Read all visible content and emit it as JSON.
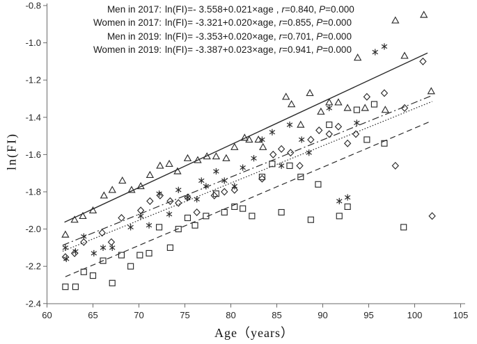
{
  "figure": {
    "background": "#ffffff",
    "ink": "#2a2a2a",
    "text_color": "#1a1a1a"
  },
  "axes": {
    "x_label": "Age（years）",
    "y_label": "ln(FI)",
    "x_ticks": [
      60,
      65,
      70,
      75,
      80,
      85,
      90,
      95,
      100,
      105
    ],
    "y_ticks": [
      -0.8,
      -1.0,
      -1.2,
      -1.4,
      -1.6,
      -1.8,
      -2.0,
      -2.2,
      -2.4
    ]
  },
  "annotations": [
    {
      "label": "Men in 2017:",
      "eq": "ln(FI)=- 3.558+0.021×age ,",
      "r_name": "r",
      "r_rest": "=0.840, ",
      "p_name": "P",
      "p_rest": "=0.000"
    },
    {
      "label": "Women in 2017:",
      "eq": "ln(FI)= -3.321+0.020×age,",
      "r_name": "r",
      "r_rest": "=0.855, ",
      "p_name": "P",
      "p_rest": "=0.000"
    },
    {
      "label": "Men in 2019:",
      "eq": "ln(FI)= -3.353+0.020×age,",
      "r_name": "r",
      "r_rest": "=0.701, ",
      "p_name": "P",
      "p_rest": "=0.000"
    },
    {
      "label": "Women in 2019:",
      "eq": "ln(FI)= -3.387+0.023×age,",
      "r_name": "r",
      "r_rest": "=0.941, ",
      "p_name": "P",
      "p_rest": "=0.000"
    }
  ],
  "chart_data": {
    "type": "scatter",
    "title": "",
    "xlabel": "Age（years）",
    "ylabel": "ln(FI)",
    "xlim": [
      60,
      105
    ],
    "ylim": [
      -2.4,
      -0.8
    ],
    "x_tick_step": 5,
    "y_tick_step": 0.2,
    "grid": false,
    "legend": "none (equations annotated at top)",
    "series": [
      {
        "name": "Men in 2017",
        "marker": "square",
        "line_style": "dashed",
        "regression": {
          "intercept": -3.558,
          "slope": 0.021,
          "r": 0.84,
          "p": 0.0
        },
        "line_x_range": [
          62.0,
          101.8
        ],
        "points": [
          [
            62.0,
            -2.31
          ],
          [
            63.1,
            -2.31
          ],
          [
            64.0,
            -2.23
          ],
          [
            65.0,
            -2.25
          ],
          [
            66.1,
            -2.17
          ],
          [
            67.1,
            -2.29
          ],
          [
            68.1,
            -2.14
          ],
          [
            69.1,
            -2.2
          ],
          [
            70.1,
            -2.14
          ],
          [
            71.1,
            -2.13
          ],
          [
            72.2,
            -1.99
          ],
          [
            73.4,
            -2.1
          ],
          [
            74.3,
            -2.0
          ],
          [
            75.3,
            -1.94
          ],
          [
            76.1,
            -1.98
          ],
          [
            77.3,
            -1.93
          ],
          [
            78.4,
            -1.81
          ],
          [
            79.3,
            -1.91
          ],
          [
            80.4,
            -1.88
          ],
          [
            81.3,
            -1.89
          ],
          [
            82.3,
            -1.93
          ],
          [
            83.4,
            -1.72
          ],
          [
            84.5,
            -1.65
          ],
          [
            85.5,
            -1.91
          ],
          [
            86.4,
            -1.66
          ],
          [
            87.6,
            -1.72
          ],
          [
            88.7,
            -1.95
          ],
          [
            89.5,
            -1.76
          ],
          [
            90.7,
            -1.44
          ],
          [
            91.8,
            -1.93
          ],
          [
            92.7,
            -1.88
          ],
          [
            93.7,
            -1.36
          ],
          [
            94.8,
            -1.52
          ],
          [
            95.6,
            -1.33
          ],
          [
            96.7,
            -1.54
          ],
          [
            98.8,
            -1.99
          ]
        ]
      },
      {
        "name": "Women in 2017",
        "marker": "asterisk",
        "line_style": "dashdot",
        "regression": {
          "intercept": -3.321,
          "slope": 0.02,
          "r": 0.855,
          "p": 0.0
        },
        "line_x_range": [
          61.7,
          102.0
        ],
        "points": [
          [
            62.0,
            -2.1
          ],
          [
            62.1,
            -2.16
          ],
          [
            63.1,
            -2.12
          ],
          [
            64.0,
            -2.04
          ],
          [
            65.1,
            -2.13
          ],
          [
            66.1,
            -2.1
          ],
          [
            67.1,
            -2.1
          ],
          [
            69.1,
            -1.99
          ],
          [
            70.2,
            -1.93
          ],
          [
            71.1,
            -1.98
          ],
          [
            72.2,
            -1.81
          ],
          [
            73.3,
            -1.92
          ],
          [
            74.3,
            -1.79
          ],
          [
            75.3,
            -1.83
          ],
          [
            76.3,
            -1.84
          ],
          [
            76.8,
            -1.74
          ],
          [
            77.3,
            -1.77
          ],
          [
            78.4,
            -1.69
          ],
          [
            79.3,
            -1.74
          ],
          [
            80.4,
            -1.77
          ],
          [
            81.3,
            -1.67
          ],
          [
            82.5,
            -1.62
          ],
          [
            83.4,
            -1.52
          ],
          [
            84.5,
            -1.48
          ],
          [
            85.5,
            -1.66
          ],
          [
            86.4,
            -1.44
          ],
          [
            87.7,
            -1.52
          ],
          [
            88.5,
            -1.59
          ],
          [
            90.7,
            -1.35
          ],
          [
            91.8,
            -1.85
          ],
          [
            92.7,
            -1.83
          ],
          [
            93.7,
            -1.43
          ],
          [
            95.7,
            -1.05
          ],
          [
            96.7,
            -1.02
          ]
        ]
      },
      {
        "name": "Men in 2019",
        "marker": "diamond",
        "line_style": "dotted",
        "regression": {
          "intercept": -3.353,
          "slope": 0.02,
          "r": 0.701,
          "p": 0.0
        },
        "line_x_range": [
          61.7,
          101.9
        ],
        "points": [
          [
            62.0,
            -2.15
          ],
          [
            63.0,
            -2.13
          ],
          [
            64.0,
            -2.07
          ],
          [
            66.0,
            -2.02
          ],
          [
            67.0,
            -2.07
          ],
          [
            68.1,
            -1.94
          ],
          [
            70.2,
            -1.9
          ],
          [
            71.2,
            -1.85
          ],
          [
            72.3,
            -1.82
          ],
          [
            73.4,
            -1.85
          ],
          [
            74.3,
            -1.86
          ],
          [
            75.3,
            -1.83
          ],
          [
            76.3,
            -1.91
          ],
          [
            78.2,
            -1.82
          ],
          [
            79.3,
            -1.8
          ],
          [
            80.4,
            -1.79
          ],
          [
            83.4,
            -1.73
          ],
          [
            84.6,
            -1.6
          ],
          [
            85.5,
            -1.57
          ],
          [
            86.5,
            -1.59
          ],
          [
            87.5,
            -1.66
          ],
          [
            88.7,
            -1.52
          ],
          [
            89.6,
            -1.47
          ],
          [
            90.7,
            -1.49
          ],
          [
            91.7,
            -1.45
          ],
          [
            92.7,
            -1.54
          ],
          [
            93.6,
            -1.49
          ],
          [
            94.8,
            -1.29
          ],
          [
            96.7,
            -1.27
          ],
          [
            97.9,
            -1.66
          ],
          [
            98.9,
            -1.35
          ],
          [
            100.9,
            -1.1
          ],
          [
            101.9,
            -1.93
          ]
        ]
      },
      {
        "name": "Women in 2019",
        "marker": "triangle",
        "line_style": "solid",
        "regression": {
          "intercept": -3.387,
          "slope": 0.023,
          "r": 0.941,
          "p": 0.0
        },
        "line_x_range": [
          61.9,
          101.4
        ],
        "points": [
          [
            62.0,
            -2.03
          ],
          [
            63.0,
            -1.95
          ],
          [
            63.9,
            -1.93
          ],
          [
            65.0,
            -1.9
          ],
          [
            66.2,
            -1.82
          ],
          [
            67.1,
            -1.79
          ],
          [
            68.2,
            -1.74
          ],
          [
            69.2,
            -1.79
          ],
          [
            70.2,
            -1.77
          ],
          [
            71.2,
            -1.71
          ],
          [
            72.3,
            -1.66
          ],
          [
            73.3,
            -1.65
          ],
          [
            74.2,
            -1.69
          ],
          [
            75.3,
            -1.62
          ],
          [
            76.4,
            -1.63
          ],
          [
            77.4,
            -1.61
          ],
          [
            78.4,
            -1.61
          ],
          [
            79.5,
            -1.62
          ],
          [
            80.4,
            -1.56
          ],
          [
            81.5,
            -1.51
          ],
          [
            82.0,
            -1.52
          ],
          [
            83.0,
            -1.52
          ],
          [
            83.5,
            -1.56
          ],
          [
            86.0,
            -1.29
          ],
          [
            86.6,
            -1.33
          ],
          [
            87.6,
            -1.44
          ],
          [
            88.6,
            -1.27
          ],
          [
            89.8,
            -1.37
          ],
          [
            90.7,
            -1.32
          ],
          [
            91.7,
            -1.32
          ],
          [
            92.7,
            -1.35
          ],
          [
            93.8,
            -1.08
          ],
          [
            94.6,
            -1.35
          ],
          [
            96.8,
            -1.36
          ],
          [
            97.9,
            -0.88
          ],
          [
            98.9,
            -1.07
          ],
          [
            101.0,
            -0.85
          ],
          [
            101.8,
            -1.26
          ]
        ]
      }
    ]
  }
}
